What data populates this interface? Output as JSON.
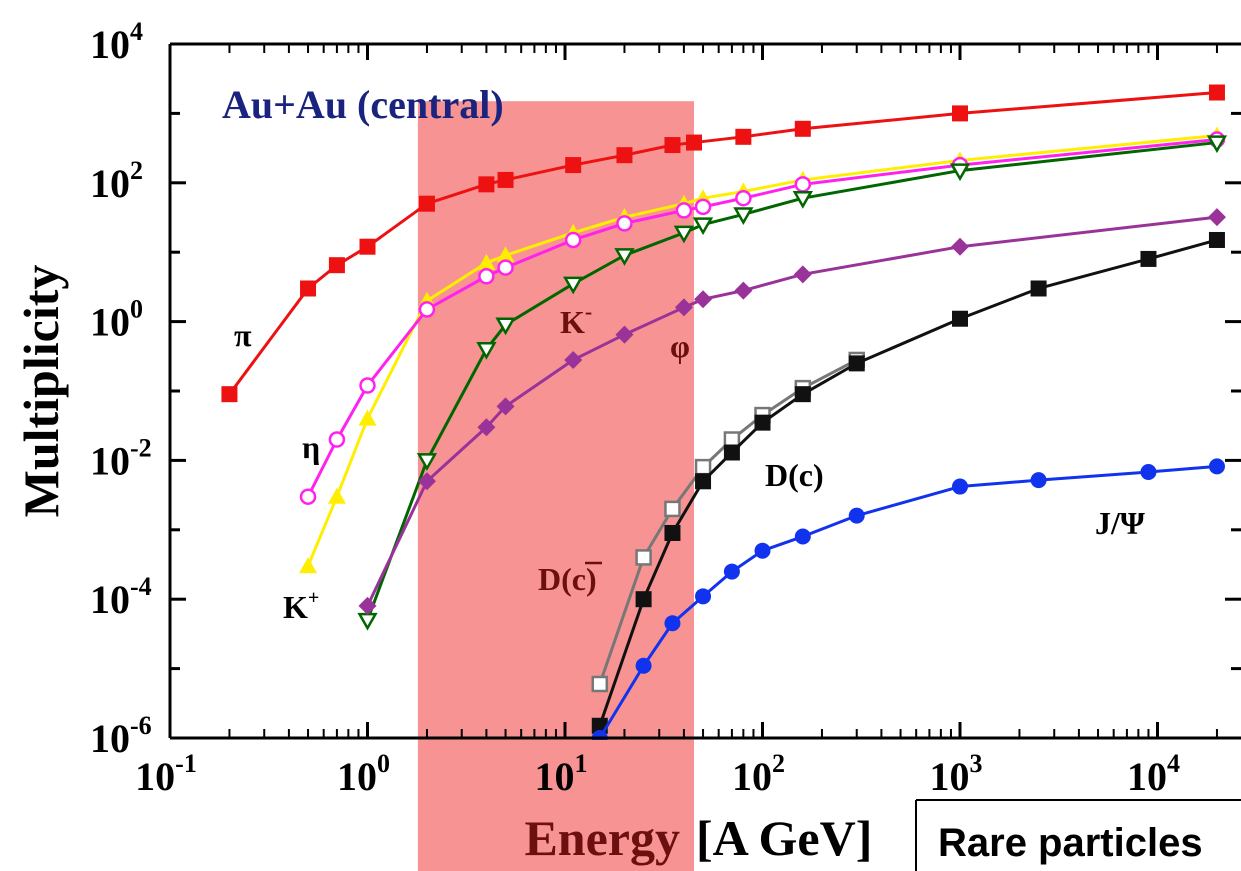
{
  "chart_data": {
    "type": "line",
    "title": "Au+Au (central)",
    "xlabel_main": "Energy",
    "xlabel_unit": "[A GeV]",
    "ylabel": "Multiplicity",
    "xscale": "log",
    "yscale": "log",
    "xlim": [
      0.1,
      22000
    ],
    "ylim": [
      1e-06,
      10000
    ],
    "x_ticks": [
      {
        "base": "10",
        "exp": "-1",
        "value": 0.1
      },
      {
        "base": "10",
        "exp": "0",
        "value": 1
      },
      {
        "base": "10",
        "exp": "1",
        "value": 10
      },
      {
        "base": "10",
        "exp": "2",
        "value": 100
      },
      {
        "base": "10",
        "exp": "3",
        "value": 1000
      },
      {
        "base": "10",
        "exp": "4",
        "value": 10000
      }
    ],
    "y_ticks": [
      {
        "base": "10",
        "exp": "4",
        "value": 10000
      },
      {
        "base": "10",
        "exp": "2",
        "value": 100
      },
      {
        "base": "10",
        "exp": "0",
        "value": 1
      },
      {
        "base": "10",
        "exp": "-2",
        "value": 0.01
      },
      {
        "base": "10",
        "exp": "-4",
        "value": 0.0001
      },
      {
        "base": "10",
        "exp": "-6",
        "value": 1e-06
      }
    ],
    "highlight_band": {
      "x_range": [
        1.8,
        45
      ],
      "y_top": 1500,
      "color": "#f46f6f"
    },
    "inset_label": "Rare particles",
    "series": [
      {
        "name": "π",
        "color": "#ee1111",
        "marker": "square-filled",
        "x": [
          0.2,
          0.5,
          0.7,
          1,
          2,
          4,
          5,
          11,
          20,
          35,
          45,
          80,
          160,
          1000,
          20000
        ],
        "y": [
          0.09,
          3,
          6.5,
          12,
          50,
          95,
          110,
          180,
          250,
          350,
          380,
          460,
          600,
          1000,
          2000
        ]
      },
      {
        "name": "K",
        "label_sup": "+",
        "color": "#ffee00",
        "marker": "triangle-up-filled",
        "x": [
          0.5,
          0.7,
          1,
          2,
          4,
          5,
          11,
          20,
          40,
          50,
          80,
          160,
          1000,
          20000
        ],
        "y": [
          0.0003,
          0.003,
          0.04,
          2.0,
          7,
          9,
          19,
          32,
          50,
          60,
          75,
          110,
          210,
          480
        ]
      },
      {
        "name": "η",
        "color": "#ff22ee",
        "marker": "circle-open",
        "x": [
          0.5,
          0.7,
          1,
          2,
          4,
          5,
          11,
          20,
          40,
          50,
          80,
          160,
          1000,
          20000
        ],
        "y": [
          0.003,
          0.02,
          0.12,
          1.5,
          4.5,
          6,
          15,
          26,
          40,
          45,
          60,
          95,
          180,
          420
        ]
      },
      {
        "name": "K",
        "label_sup": "-",
        "color": "#006600",
        "marker": "triangle-down-open",
        "x": [
          1,
          2,
          4,
          5,
          11,
          20,
          40,
          50,
          80,
          160,
          1000,
          20000
        ],
        "y": [
          5e-05,
          0.01,
          0.4,
          0.9,
          3.5,
          9,
          19,
          25,
          35,
          60,
          150,
          380
        ]
      },
      {
        "name": "φ",
        "color": "#993399",
        "marker": "diamond-filled",
        "x": [
          1,
          2,
          4,
          5,
          11,
          20,
          40,
          50,
          80,
          160,
          1000,
          20000
        ],
        "y": [
          8e-05,
          0.005,
          0.03,
          0.06,
          0.28,
          0.65,
          1.6,
          2.1,
          2.8,
          4.8,
          12,
          32
        ]
      },
      {
        "name": "D(c̄)",
        "color": "#777777",
        "marker": "square-open",
        "x": [
          15,
          25,
          35,
          50,
          70,
          100,
          160,
          300
        ],
        "y": [
          6e-06,
          0.0004,
          0.002,
          0.008,
          0.02,
          0.045,
          0.11,
          0.28
        ]
      },
      {
        "name": "D(c)",
        "color": "#111111",
        "marker": "square-filled",
        "x": [
          15,
          25,
          35,
          50,
          70,
          100,
          160,
          300,
          1000,
          2500,
          9000,
          20000
        ],
        "y": [
          1.5e-06,
          0.0001,
          0.0009,
          0.005,
          0.013,
          0.035,
          0.09,
          0.25,
          1.1,
          3,
          8,
          15
        ]
      },
      {
        "name": "J/Ψ",
        "color": "#1133ee",
        "marker": "circle-filled",
        "x": [
          15,
          25,
          35,
          50,
          70,
          100,
          160,
          300,
          1000,
          2500,
          9000,
          20000
        ],
        "y": [
          1e-06,
          1.1e-05,
          4.5e-05,
          0.00011,
          0.00025,
          0.0005,
          0.0008,
          0.0016,
          0.0042,
          0.0052,
          0.0068,
          0.0082
        ]
      }
    ],
    "annotations": {
      "pi": "π",
      "eta": "η",
      "k_plus_base": "K",
      "k_plus_sup": "+",
      "k_minus_base": "K",
      "k_minus_sup": "-",
      "phi": "φ",
      "d_c": "D(c)",
      "d_cbar_pre": "D(",
      "d_cbar_c": "c",
      "d_cbar_post": ")",
      "jpsi": "J/Ψ"
    }
  }
}
